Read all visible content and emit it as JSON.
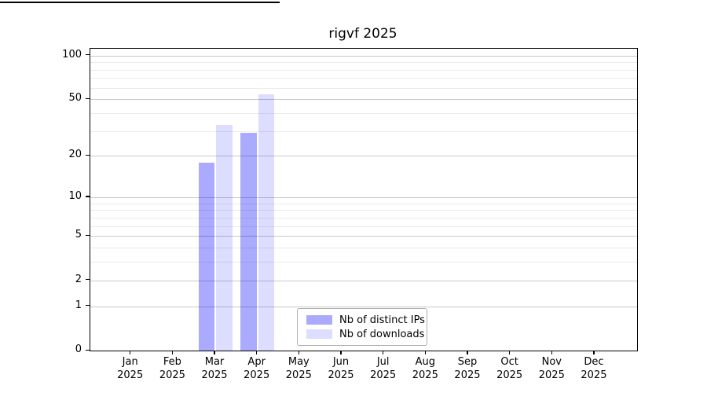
{
  "page": {
    "background_color": "#ffffff"
  },
  "chart_data": {
    "type": "bar",
    "title": "rigvf 2025",
    "categories": [
      "Jan",
      "Feb",
      "Mar",
      "Apr",
      "May",
      "Jun",
      "Jul",
      "Aug",
      "Sep",
      "Oct",
      "Nov",
      "Dec"
    ],
    "year_label": "2025",
    "series": [
      {
        "name": "Nb of distinct IPs",
        "color": "#aaaaff",
        "values": [
          0,
          0,
          18,
          29,
          0,
          0,
          0,
          0,
          0,
          0,
          0,
          0
        ]
      },
      {
        "name": "Nb of downloads",
        "color": "#ddddff",
        "values": [
          0,
          0,
          33,
          54,
          0,
          0,
          0,
          0,
          0,
          0,
          0,
          0
        ]
      }
    ],
    "y_axis": {
      "scale": "log1p",
      "ticks": [
        0,
        1,
        2,
        5,
        10,
        20,
        50,
        100
      ],
      "minor_ticks": [
        3,
        4,
        6,
        7,
        8,
        9,
        30,
        40,
        60,
        70,
        80,
        90
      ],
      "max": 112
    },
    "x_axis": {
      "tick_count": 12
    },
    "grid": "on",
    "legend": {
      "position": "bottom-center"
    },
    "colors": {
      "spine": "#000000",
      "major_grid": "#c9c9c9",
      "minor_grid": "#ebebeb"
    }
  }
}
